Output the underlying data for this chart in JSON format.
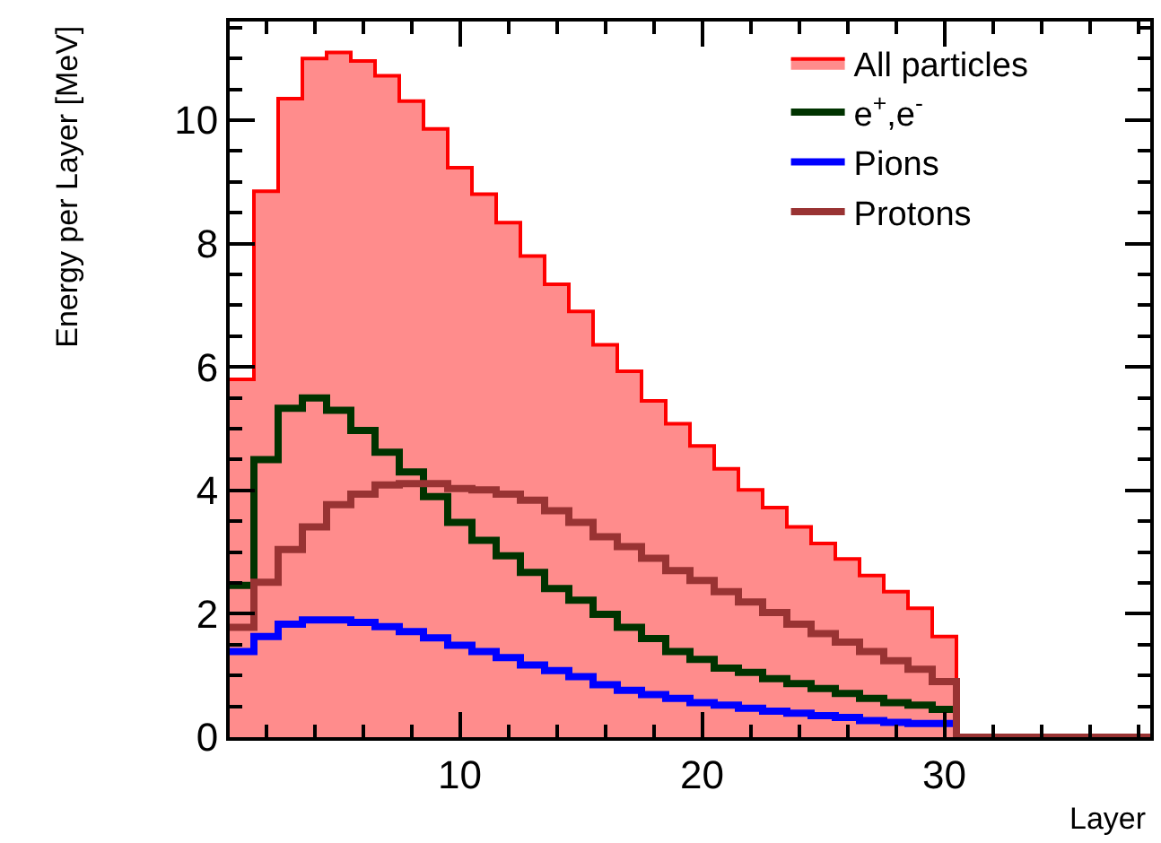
{
  "chart_data": {
    "type": "histogram",
    "xlabel": "Layer",
    "ylabel": "Energy per Layer [MeV]",
    "bins": [
      0.5,
      1.5,
      2.5,
      3.5,
      4.5,
      5.5,
      6.5,
      7.5,
      8.5,
      9.5,
      10.5,
      11.5,
      12.5,
      13.5,
      14.5,
      15.5,
      16.5,
      17.5,
      18.5,
      19.5,
      20.5,
      21.5,
      22.5,
      23.5,
      24.5,
      25.5,
      26.5,
      27.5,
      28.5,
      29.5,
      30.5,
      31.5,
      32.5,
      33.5,
      34.5,
      35.5,
      36.5,
      37.5,
      38.5
    ],
    "series": [
      {
        "name": "All particles",
        "color": "#ff0000",
        "values": [
          5.8,
          8.85,
          10.35,
          11.0,
          11.1,
          10.96,
          10.72,
          10.31,
          9.86,
          9.23,
          8.8,
          8.34,
          7.8,
          7.34,
          6.9,
          6.36,
          5.93,
          5.45,
          5.08,
          4.72,
          4.35,
          4.01,
          3.72,
          3.41,
          3.14,
          2.89,
          2.62,
          2.36,
          2.09,
          1.63,
          0,
          0,
          0,
          0,
          0,
          0,
          0,
          0
        ]
      },
      {
        "name": "e$^{+}$,e$^{-}$",
        "color": "#003300",
        "values": [
          2.46,
          4.5,
          5.33,
          5.5,
          5.3,
          4.97,
          4.62,
          4.3,
          3.9,
          3.48,
          3.19,
          2.94,
          2.67,
          2.41,
          2.22,
          1.99,
          1.78,
          1.6,
          1.39,
          1.26,
          1.12,
          1.05,
          0.95,
          0.87,
          0.79,
          0.71,
          0.63,
          0.56,
          0.52,
          0.45,
          0,
          0,
          0,
          0,
          0,
          0,
          0,
          0
        ]
      },
      {
        "name": "Pions",
        "color": "#0000ff",
        "values": [
          1.39,
          1.63,
          1.83,
          1.9,
          1.9,
          1.86,
          1.79,
          1.71,
          1.61,
          1.49,
          1.39,
          1.29,
          1.17,
          1.08,
          0.98,
          0.85,
          0.76,
          0.69,
          0.63,
          0.56,
          0.52,
          0.47,
          0.42,
          0.39,
          0.35,
          0.32,
          0.27,
          0.24,
          0.22,
          0.22,
          0,
          0,
          0,
          0,
          0,
          0,
          0,
          0
        ]
      },
      {
        "name": "Protons",
        "color": "#993333",
        "values": [
          1.78,
          2.51,
          3.04,
          3.41,
          3.77,
          3.94,
          4.09,
          4.11,
          4.11,
          4.03,
          4.01,
          3.94,
          3.84,
          3.67,
          3.48,
          3.25,
          3.09,
          2.9,
          2.7,
          2.54,
          2.36,
          2.19,
          2.02,
          1.83,
          1.68,
          1.54,
          1.39,
          1.24,
          1.1,
          0.9,
          0,
          0,
          0,
          0,
          0,
          0,
          0,
          0
        ]
      }
    ],
    "xlim": [
      0.5,
      38.5
    ],
    "xticks": [
      10,
      20,
      30
    ],
    "ylim": [
      0,
      11.6
    ],
    "yticks": [
      0,
      2,
      4,
      6,
      8,
      10
    ],
    "grid": false,
    "legend": "top right"
  }
}
